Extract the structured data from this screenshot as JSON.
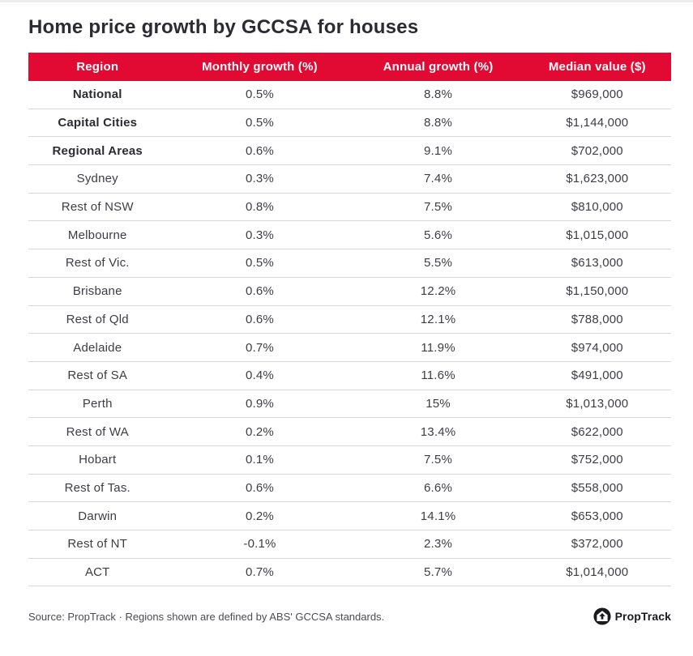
{
  "chart_data": {
    "type": "table",
    "title": "Home price growth by GCCSA for houses",
    "columns": [
      "Region",
      "Monthly growth (%)",
      "Annual growth (%)",
      "Median value ($)"
    ],
    "rows": [
      {
        "region": "National",
        "monthly": "0.5%",
        "annual": "8.8%",
        "median": "$969,000",
        "bold": true
      },
      {
        "region": "Capital Cities",
        "monthly": "0.5%",
        "annual": "8.8%",
        "median": "$1,144,000",
        "bold": true
      },
      {
        "region": "Regional Areas",
        "monthly": "0.6%",
        "annual": "9.1%",
        "median": "$702,000",
        "bold": true
      },
      {
        "region": "Sydney",
        "monthly": "0.3%",
        "annual": "7.4%",
        "median": "$1,623,000",
        "bold": false
      },
      {
        "region": "Rest of NSW",
        "monthly": "0.8%",
        "annual": "7.5%",
        "median": "$810,000",
        "bold": false
      },
      {
        "region": "Melbourne",
        "monthly": "0.3%",
        "annual": "5.6%",
        "median": "$1,015,000",
        "bold": false
      },
      {
        "region": "Rest of Vic.",
        "monthly": "0.5%",
        "annual": "5.5%",
        "median": "$613,000",
        "bold": false
      },
      {
        "region": "Brisbane",
        "monthly": "0.6%",
        "annual": "12.2%",
        "median": "$1,150,000",
        "bold": false
      },
      {
        "region": "Rest of Qld",
        "monthly": "0.6%",
        "annual": "12.1%",
        "median": "$788,000",
        "bold": false
      },
      {
        "region": "Adelaide",
        "monthly": "0.7%",
        "annual": "11.9%",
        "median": "$974,000",
        "bold": false
      },
      {
        "region": "Rest of SA",
        "monthly": "0.4%",
        "annual": "11.6%",
        "median": "$491,000",
        "bold": false
      },
      {
        "region": "Perth",
        "monthly": "0.9%",
        "annual": "15%",
        "median": "$1,013,000",
        "bold": false
      },
      {
        "region": "Rest of WA",
        "monthly": "0.2%",
        "annual": "13.4%",
        "median": "$622,000",
        "bold": false
      },
      {
        "region": "Hobart",
        "monthly": "0.1%",
        "annual": "7.5%",
        "median": "$752,000",
        "bold": false
      },
      {
        "region": "Rest of Tas.",
        "monthly": "0.6%",
        "annual": "6.6%",
        "median": "$558,000",
        "bold": false
      },
      {
        "region": "Darwin",
        "monthly": "0.2%",
        "annual": "14.1%",
        "median": "$653,000",
        "bold": false
      },
      {
        "region": "Rest of NT",
        "monthly": "-0.1%",
        "annual": "2.3%",
        "median": "$372,000",
        "bold": false
      },
      {
        "region": "ACT",
        "monthly": "0.7%",
        "annual": "5.7%",
        "median": "$1,014,000",
        "bold": false
      }
    ]
  },
  "footer": {
    "source": "Source: PropTrack · Regions shown are defined by ABS' GCCSA standards.",
    "logo_text": "PropTrack"
  },
  "colors": {
    "header_red": "#e20a33",
    "title_text": "#2b2b33",
    "body_text": "#3d3d46",
    "divider": "#d9d9d9"
  }
}
